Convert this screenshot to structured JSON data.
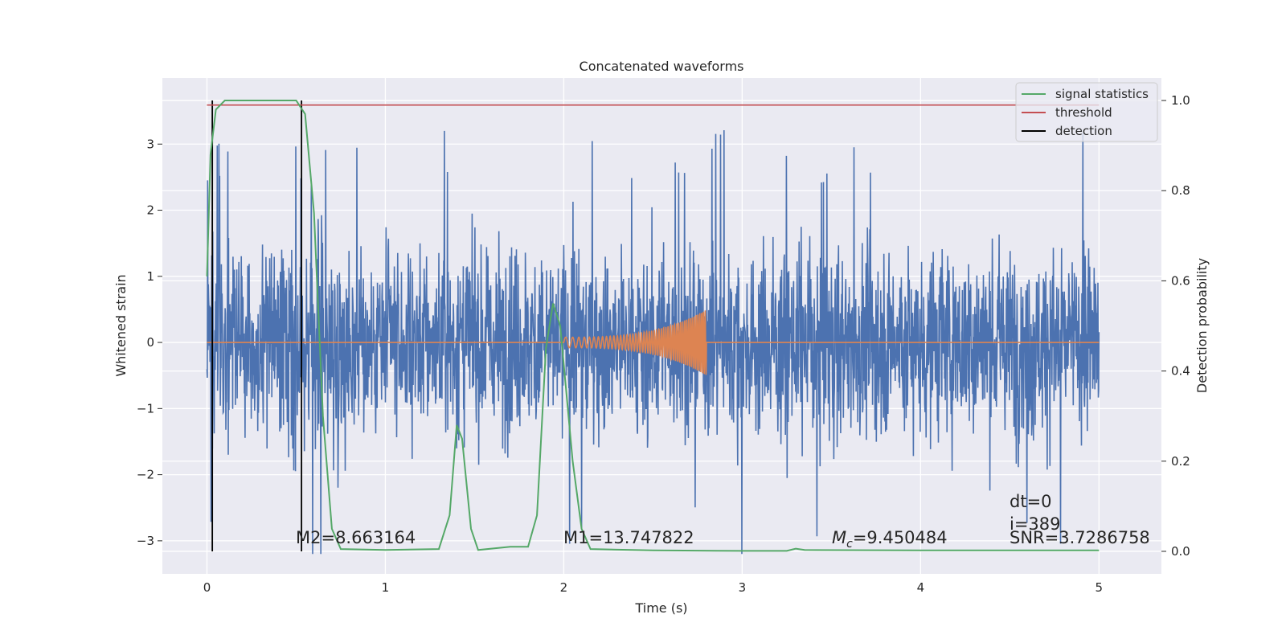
{
  "chart_data": {
    "type": "line",
    "title": "Concatenated waveforms",
    "xlabel": "Time (s)",
    "ylabel_left": "Whitened strain",
    "ylabel_right": "Detection probability",
    "xlim": [
      -0.25,
      5.35
    ],
    "ylim_left": [
      -3.5,
      4.0
    ],
    "ylim_right": [
      -0.05,
      1.05
    ],
    "x_ticks": [
      "0",
      "1",
      "2",
      "3",
      "4",
      "5"
    ],
    "y_left_ticks": [
      "−3",
      "−2",
      "−1",
      "0",
      "1",
      "2",
      "3"
    ],
    "y_right_ticks": [
      "0.0",
      "0.2",
      "0.4",
      "0.6",
      "0.8",
      "1.0"
    ],
    "grid": true,
    "legend_position": "top-right",
    "series": [
      {
        "name": "whitened-strain",
        "axis": "left",
        "color": "#4c72b0",
        "description_range_x": [
          0,
          5
        ],
        "typical_amplitude": 1.0,
        "peak_max": 3.6,
        "peak_min": -3.2
      },
      {
        "name": "injected-waveform",
        "axis": "left",
        "color": "#dd8452",
        "x_start": 2.0,
        "x_end": 2.8,
        "amplitude_start": 0.08,
        "amplitude_end": 0.5
      },
      {
        "name": "signal statistics",
        "axis": "right",
        "color": "#55a868",
        "points": [
          [
            0.0,
            0.61
          ],
          [
            0.02,
            0.88
          ],
          [
            0.05,
            0.98
          ],
          [
            0.1,
            1.0
          ],
          [
            0.3,
            1.0
          ],
          [
            0.5,
            1.0
          ],
          [
            0.55,
            0.97
          ],
          [
            0.6,
            0.75
          ],
          [
            0.65,
            0.3
          ],
          [
            0.7,
            0.05
          ],
          [
            0.75,
            0.005
          ],
          [
            1.0,
            0.003
          ],
          [
            1.3,
            0.005
          ],
          [
            1.36,
            0.08
          ],
          [
            1.4,
            0.28
          ],
          [
            1.43,
            0.25
          ],
          [
            1.48,
            0.05
          ],
          [
            1.52,
            0.003
          ],
          [
            1.7,
            0.01
          ],
          [
            1.8,
            0.01
          ],
          [
            1.85,
            0.08
          ],
          [
            1.9,
            0.45
          ],
          [
            1.94,
            0.55
          ],
          [
            1.98,
            0.5
          ],
          [
            2.05,
            0.2
          ],
          [
            2.1,
            0.05
          ],
          [
            2.15,
            0.005
          ],
          [
            2.5,
            0.002
          ],
          [
            3.0,
            0.001
          ],
          [
            3.25,
            0.001
          ],
          [
            3.3,
            0.006
          ],
          [
            3.35,
            0.003
          ],
          [
            4.0,
            0.002
          ],
          [
            5.0,
            0.002
          ]
        ]
      },
      {
        "name": "threshold",
        "axis": "right",
        "color": "#c44e52",
        "value": 0.99
      },
      {
        "name": "detection",
        "axis": "right",
        "color": "#000000",
        "x": [
          0.03,
          0.53
        ]
      }
    ],
    "legend": [
      "signal statistics",
      "threshold",
      "detection"
    ],
    "annotations": {
      "m2": "M2=8.663164",
      "m1": "M1=13.747822",
      "mc_symbol": "M",
      "mc_sub": "c",
      "mc_value": "=9.450484",
      "dt": "dt=0",
      "i": "i=389",
      "snr": "SNR=3.7286758"
    }
  }
}
